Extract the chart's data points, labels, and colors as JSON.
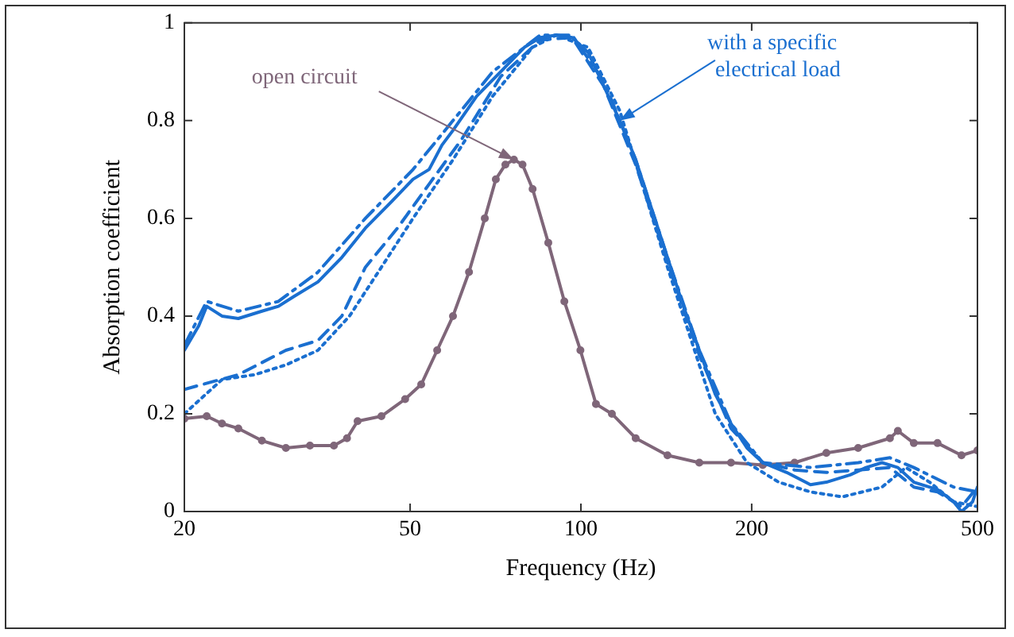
{
  "chart_data": {
    "type": "line",
    "xlabel": "Frequency (Hz)",
    "ylabel": "Absorption coefficient",
    "log": "x",
    "xlim": [
      20,
      500
    ],
    "xticks": [
      20,
      50,
      100,
      200,
      500
    ],
    "ylim": [
      0,
      1
    ],
    "yticks": [
      0,
      0.2,
      0.4,
      0.6,
      0.8,
      1
    ],
    "grid": false,
    "legend": false,
    "annotations": [
      {
        "text": "open circuit",
        "x": 76.2,
        "y": 0.72
      },
      {
        "text": "with a specific electrical load",
        "x": 117.1,
        "y": 0.8
      }
    ],
    "series": [
      {
        "color": "#1a6fd0",
        "line_style": "solid",
        "marker": "none",
        "x": [
          20,
          21.2,
          21.9,
          23.3,
          24.9,
          27.4,
          29.3,
          31.2,
          34.4,
          37.9,
          41.7,
          46.0,
          50.6,
          54.0,
          56.9,
          59.5,
          65.5,
          72.2,
          79.5,
          84.8,
          90.5,
          96.5,
          102.9,
          109.8,
          117.1,
          124.9,
          133.2,
          142.1,
          151.6,
          161.7,
          172.5,
          183.9,
          196.2,
          209.2,
          230.5,
          253.9,
          270.8,
          298.3,
          318.1,
          339.4,
          362.0,
          386.2,
          425.2,
          453.9,
          468.7,
          490.3,
          500
        ],
        "values": [
          0.33,
          0.38,
          0.42,
          0.4,
          0.395,
          0.41,
          0.42,
          0.44,
          0.47,
          0.52,
          0.58,
          0.63,
          0.68,
          0.7,
          0.75,
          0.78,
          0.85,
          0.9,
          0.95,
          0.97,
          0.975,
          0.97,
          0.94,
          0.87,
          0.8,
          0.72,
          0.62,
          0.52,
          0.42,
          0.33,
          0.24,
          0.18,
          0.13,
          0.1,
          0.08,
          0.055,
          0.06,
          0.075,
          0.09,
          0.1,
          0.09,
          0.06,
          0.045,
          0.02,
          0,
          0.02,
          0.05
        ]
      },
      {
        "color": "#1a6fd0",
        "line_style": "dashed",
        "marker": "none",
        "x": [
          20,
          24.9,
          30.2,
          34.4,
          37.9,
          41.7,
          47.5,
          54.0,
          61.5,
          72.2,
          84.8,
          96.5,
          109.8,
          124.9,
          142.1,
          161.7,
          183.9,
          209.2,
          238.0,
          270.8,
          308.1,
          350.5,
          386.2,
          425.2,
          468.7,
          500
        ],
        "values": [
          0.25,
          0.28,
          0.33,
          0.35,
          0.4,
          0.5,
          0.58,
          0.67,
          0.76,
          0.89,
          0.965,
          0.97,
          0.87,
          0.71,
          0.51,
          0.32,
          0.17,
          0.1,
          0.085,
          0.08,
          0.085,
          0.09,
          0.05,
          0.04,
          0.01,
          0.05
        ]
      },
      {
        "color": "#1a6fd0",
        "line_style": "dashdot",
        "marker": "none",
        "x": [
          20,
          21.9,
          24.9,
          29.3,
          34.4,
          41.7,
          50.6,
          59.5,
          69.9,
          84.8,
          96.5,
          109.8,
          124.9,
          142.1,
          161.7,
          183.9,
          209.2,
          253.9,
          308.1,
          350.5,
          386.2,
          453.9,
          500
        ],
        "values": [
          0.34,
          0.43,
          0.41,
          0.43,
          0.49,
          0.6,
          0.7,
          0.8,
          0.9,
          0.975,
          0.975,
          0.88,
          0.72,
          0.52,
          0.33,
          0.18,
          0.1,
          0.09,
          0.1,
          0.11,
          0.09,
          0.05,
          0.04
        ]
      },
      {
        "color": "#1a6fd0",
        "line_style": "dotted",
        "marker": "none",
        "x": [
          20,
          23.3,
          26.6,
          30.2,
          34.4,
          39.1,
          44.5,
          50.6,
          59.5,
          69.9,
          82.2,
          90.5,
          102.9,
          117.1,
          142.1,
          172.5,
          196.2,
          223.2,
          253.9,
          288.8,
          339.4,
          373.9,
          411.9,
          453.9,
          500
        ],
        "values": [
          0.2,
          0.27,
          0.28,
          0.3,
          0.33,
          0.4,
          0.5,
          0.6,
          0.72,
          0.85,
          0.95,
          0.975,
          0.95,
          0.82,
          0.5,
          0.2,
          0.1,
          0.06,
          0.04,
          0.03,
          0.05,
          0.09,
          0.06,
          0.02,
          0.01
        ]
      },
      {
        "color": "#7f6679",
        "line_style": "solid",
        "marker": "circle",
        "x": [
          20,
          21.9,
          23.3,
          24.9,
          27.4,
          30.2,
          33.3,
          36.7,
          38.7,
          40.4,
          44.5,
          49.0,
          52.3,
          55.8,
          59.5,
          63.5,
          67.7,
          70.8,
          73.6,
          76.2,
          78.9,
          82.2,
          87.6,
          93.5,
          99.8,
          106.3,
          113.4,
          124.9,
          142.1,
          161.7,
          183.9,
          209.2,
          238.0,
          270.8,
          308.1,
          350.5,
          362.0,
          386.2,
          425.2,
          468.7,
          500
        ],
        "values": [
          0.19,
          0.195,
          0.18,
          0.17,
          0.145,
          0.13,
          0.135,
          0.135,
          0.15,
          0.185,
          0.195,
          0.23,
          0.26,
          0.33,
          0.4,
          0.49,
          0.6,
          0.68,
          0.71,
          0.72,
          0.71,
          0.66,
          0.55,
          0.43,
          0.33,
          0.22,
          0.2,
          0.15,
          0.115,
          0.1,
          0.1,
          0.095,
          0.1,
          0.12,
          0.13,
          0.15,
          0.165,
          0.14,
          0.14,
          0.115,
          0.125
        ]
      }
    ]
  }
}
